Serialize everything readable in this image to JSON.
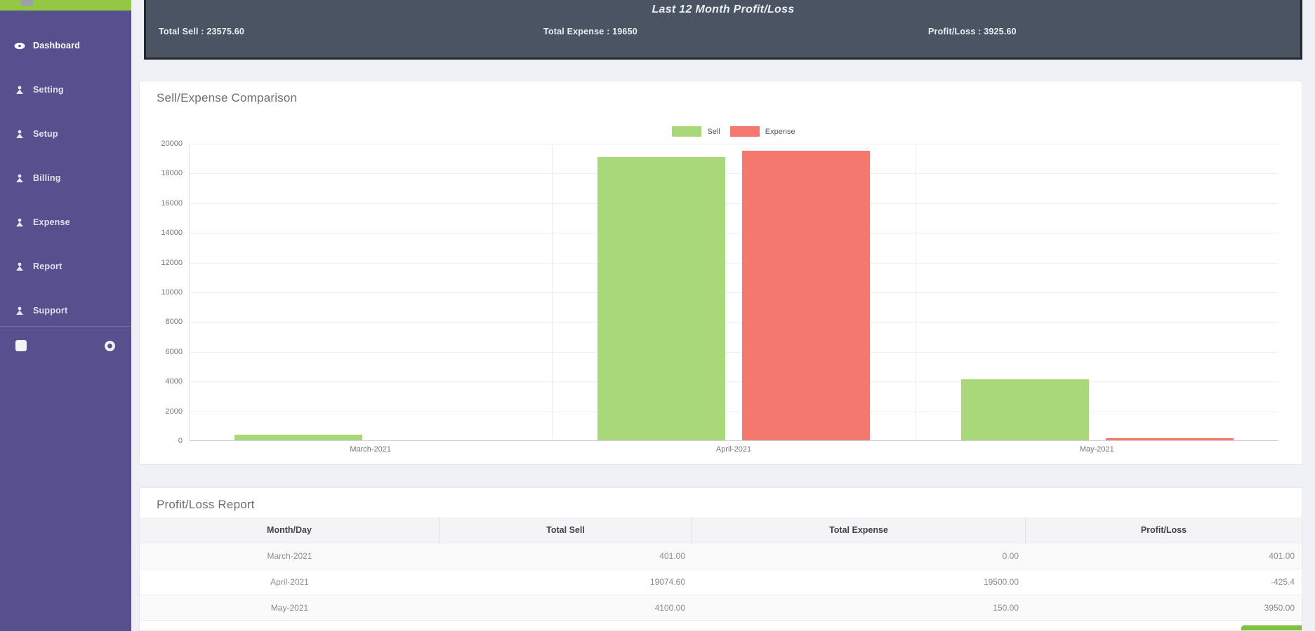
{
  "sidebar": {
    "items": [
      {
        "label": "Dashboard",
        "icon": "eye-icon",
        "active": true
      },
      {
        "label": "Setting",
        "icon": "user-icon",
        "active": false
      },
      {
        "label": "Setup",
        "icon": "user-icon",
        "active": false
      },
      {
        "label": "Billing",
        "icon": "user-icon",
        "active": false
      },
      {
        "label": "Expense",
        "icon": "user-icon",
        "active": false
      },
      {
        "label": "Report",
        "icon": "user-icon",
        "active": false
      },
      {
        "label": "Support",
        "icon": "user-icon",
        "active": false
      }
    ],
    "bottom_icons": [
      "menu-square-icon",
      "gear-icon"
    ],
    "colors": {
      "background": "#57508e",
      "top_strip": "#93c844"
    }
  },
  "header": {
    "title": "Last 12 Month Profit/Loss",
    "stats": [
      {
        "label": "Total Sell",
        "value": "23575.60"
      },
      {
        "label": "Total Expense",
        "value": "19650"
      },
      {
        "label": "Profit/Loss",
        "value": "3925.60"
      }
    ],
    "colors": {
      "background": "#4a5463",
      "border": "#23272f"
    }
  },
  "chart_card": {
    "title": "Sell/Expense Comparison"
  },
  "chart_data": {
    "type": "bar",
    "title": "Sell/Expense Comparison",
    "categories": [
      "March-2021",
      "April-2021",
      "May-2021"
    ],
    "series": [
      {
        "name": "Sell",
        "color": "#a9d87a",
        "values": [
          401,
          19074.6,
          4100
        ]
      },
      {
        "name": "Expense",
        "color": "#f4786e",
        "values": [
          0,
          19500,
          150
        ]
      }
    ],
    "ylim": [
      0,
      20000
    ],
    "ytick_step": 2000,
    "legend_position": "top",
    "grid": true,
    "xlabel": "",
    "ylabel": ""
  },
  "table_card": {
    "title": "Profit/Loss Report",
    "columns": [
      "Month/Day",
      "Total Sell",
      "Total Expense",
      "Profit/Loss"
    ],
    "rows": [
      [
        "March-2021",
        "401.00",
        "0.00",
        "401.00"
      ],
      [
        "April-2021",
        "19074.60",
        "19500.00",
        "-425.4"
      ],
      [
        "May-2021",
        "4100.00",
        "150.00",
        "3950.00"
      ]
    ]
  }
}
